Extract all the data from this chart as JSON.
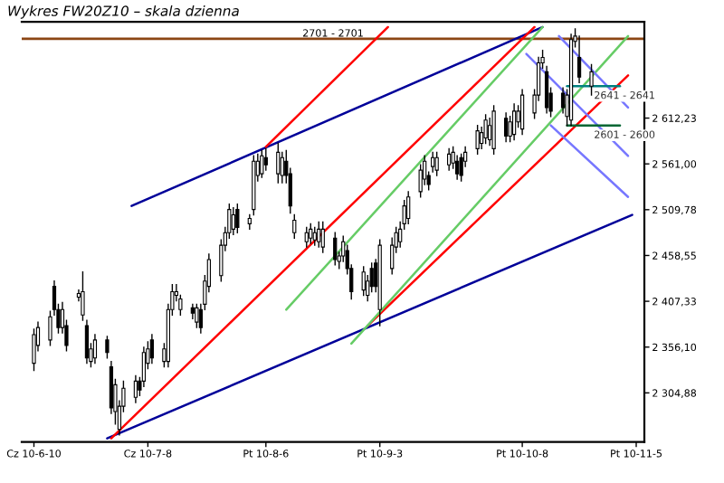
{
  "chart_data": {
    "type": "candlestick",
    "title": "Wykres FW20Z10 – skala dzienna",
    "x": [
      "2010-06-10",
      "2010-06-11",
      "2010-06-14",
      "2010-06-15",
      "2010-06-16",
      "2010-06-17",
      "2010-06-18",
      "2010-06-21",
      "2010-06-22",
      "2010-06-23",
      "2010-06-24",
      "2010-06-25",
      "2010-06-28",
      "2010-06-29",
      "2010-06-30",
      "2010-07-01",
      "2010-07-02",
      "2010-07-05",
      "2010-07-06",
      "2010-07-07",
      "2010-07-08",
      "2010-07-09",
      "2010-07-12",
      "2010-07-13",
      "2010-07-14",
      "2010-07-15",
      "2010-07-16",
      "2010-07-19",
      "2010-07-20",
      "2010-07-21",
      "2010-07-22",
      "2010-07-23",
      "2010-07-26",
      "2010-07-27",
      "2010-07-28",
      "2010-07-29",
      "2010-07-30",
      "2010-08-02",
      "2010-08-03",
      "2010-08-04",
      "2010-08-05",
      "2010-08-06",
      "2010-08-09",
      "2010-08-10",
      "2010-08-11",
      "2010-08-12",
      "2010-08-13",
      "2010-08-16",
      "2010-08-17",
      "2010-08-18",
      "2010-08-19",
      "2010-08-20",
      "2010-08-23",
      "2010-08-24",
      "2010-08-25",
      "2010-08-26",
      "2010-08-27",
      "2010-08-30",
      "2010-08-31",
      "2010-09-01",
      "2010-09-02",
      "2010-09-03",
      "2010-09-06",
      "2010-09-07",
      "2010-09-08",
      "2010-09-09",
      "2010-09-10",
      "2010-09-13",
      "2010-09-14",
      "2010-09-15",
      "2010-09-16",
      "2010-09-17",
      "2010-09-20",
      "2010-09-21",
      "2010-09-22",
      "2010-09-23",
      "2010-09-24",
      "2010-09-27",
      "2010-09-28",
      "2010-09-29",
      "2010-09-30",
      "2010-10-01",
      "2010-10-04",
      "2010-10-05",
      "2010-10-06",
      "2010-10-07",
      "2010-10-08",
      "2010-10-11",
      "2010-10-12",
      "2010-10-13",
      "2010-10-14",
      "2010-10-15",
      "2010-10-18",
      "2010-10-19",
      "2010-10-20",
      "2010-10-21",
      "2010-10-22",
      "2010-10-25"
    ],
    "ohlc": [
      [
        2338,
        2376,
        2330,
        2370
      ],
      [
        2358,
        2384,
        2352,
        2378
      ],
      [
        2364,
        2396,
        2358,
        2390
      ],
      [
        2424,
        2430,
        2392,
        2398
      ],
      [
        2398,
        2404,
        2372,
        2378
      ],
      [
        2378,
        2406,
        2372,
        2398
      ],
      [
        2380,
        2386,
        2352,
        2358
      ],
      [
        2412,
        2420,
        2408,
        2416
      ],
      [
        2392,
        2440,
        2386,
        2418
      ],
      [
        2380,
        2386,
        2338,
        2344
      ],
      [
        2340,
        2360,
        2334,
        2354
      ],
      [
        2344,
        2370,
        2338,
        2364
      ],
      [
        2364,
        2368,
        2344,
        2350
      ],
      [
        2334,
        2340,
        2282,
        2288
      ],
      [
        2284,
        2320,
        2270,
        2314
      ],
      [
        2264,
        2296,
        2258,
        2290
      ],
      [
        2290,
        2318,
        2284,
        2310
      ],
      [
        2300,
        2324,
        2294,
        2318
      ],
      [
        2318,
        2322,
        2302,
        2308
      ],
      [
        2318,
        2356,
        2312,
        2350
      ],
      [
        2338,
        2362,
        2332,
        2354
      ],
      [
        2364,
        2370,
        2338,
        2344
      ],
      [
        2340,
        2360,
        2334,
        2354
      ],
      [
        2340,
        2404,
        2334,
        2398
      ],
      [
        2398,
        2426,
        2392,
        2418
      ],
      [
        2414,
        2426,
        2408,
        2418
      ],
      [
        2398,
        2414,
        2392,
        2410
      ],
      [
        2400,
        2404,
        2388,
        2394
      ],
      [
        2384,
        2404,
        2378,
        2400
      ],
      [
        2398,
        2404,
        2372,
        2378
      ],
      [
        2404,
        2436,
        2398,
        2430
      ],
      [
        2424,
        2460,
        2418,
        2454
      ],
      [
        2436,
        2476,
        2430,
        2470
      ],
      [
        2470,
        2490,
        2464,
        2484
      ],
      [
        2484,
        2516,
        2478,
        2510
      ],
      [
        2488,
        2512,
        2482,
        2504
      ],
      [
        2510,
        2516,
        2484,
        2490
      ],
      [
        2494,
        2504,
        2488,
        2500
      ],
      [
        2510,
        2570,
        2504,
        2564
      ],
      [
        2548,
        2572,
        2542,
        2564
      ],
      [
        2550,
        2576,
        2546,
        2570
      ],
      [
        2568,
        2578,
        2554,
        2560
      ],
      [
        2550,
        2584,
        2540,
        2574
      ],
      [
        2548,
        2574,
        2540,
        2568
      ],
      [
        2564,
        2576,
        2540,
        2548
      ],
      [
        2550,
        2556,
        2506,
        2514
      ],
      [
        2484,
        2504,
        2478,
        2498
      ],
      [
        2474,
        2490,
        2468,
        2484
      ],
      [
        2478,
        2494,
        2472,
        2488
      ],
      [
        2476,
        2490,
        2470,
        2484
      ],
      [
        2474,
        2496,
        2468,
        2488
      ],
      [
        2468,
        2496,
        2462,
        2488
      ],
      [
        2478,
        2484,
        2448,
        2454
      ],
      [
        2452,
        2462,
        2444,
        2458
      ],
      [
        2458,
        2480,
        2452,
        2474
      ],
      [
        2464,
        2470,
        2438,
        2444
      ],
      [
        2444,
        2448,
        2410,
        2418
      ],
      [
        2420,
        2446,
        2414,
        2440
      ],
      [
        2414,
        2436,
        2408,
        2430
      ],
      [
        2444,
        2450,
        2418,
        2424
      ],
      [
        2450,
        2454,
        2418,
        2424
      ],
      [
        2398,
        2476,
        2380,
        2470
      ],
      [
        2444,
        2478,
        2438,
        2470
      ],
      [
        2468,
        2490,
        2462,
        2484
      ],
      [
        2474,
        2496,
        2468,
        2488
      ],
      [
        2494,
        2520,
        2488,
        2514
      ],
      [
        2500,
        2530,
        2494,
        2524
      ],
      [
        2530,
        2560,
        2524,
        2554
      ],
      [
        2544,
        2570,
        2538,
        2564
      ],
      [
        2548,
        2552,
        2532,
        2538
      ],
      [
        2558,
        2574,
        2552,
        2568
      ],
      [
        2554,
        2574,
        2548,
        2568
      ],
      [
        2560,
        2578,
        2554,
        2572
      ],
      [
        2562,
        2580,
        2556,
        2574
      ],
      [
        2564,
        2570,
        2544,
        2550
      ],
      [
        2568,
        2572,
        2542,
        2548
      ],
      [
        2564,
        2580,
        2558,
        2574
      ],
      [
        2578,
        2604,
        2572,
        2598
      ],
      [
        2584,
        2602,
        2578,
        2596
      ],
      [
        2590,
        2616,
        2584,
        2610
      ],
      [
        2588,
        2612,
        2582,
        2604
      ],
      [
        2578,
        2626,
        2572,
        2620
      ],
      [
        2612,
        2618,
        2586,
        2592
      ],
      [
        2592,
        2614,
        2586,
        2608
      ],
      [
        2594,
        2628,
        2588,
        2620
      ],
      [
        2608,
        2626,
        2602,
        2620
      ],
      [
        2600,
        2644,
        2594,
        2638
      ],
      [
        2618,
        2644,
        2612,
        2638
      ],
      [
        2638,
        2680,
        2632,
        2674
      ],
      [
        2674,
        2688,
        2668,
        2680
      ],
      [
        2664,
        2670,
        2618,
        2624
      ],
      [
        2640,
        2646,
        2614,
        2620
      ],
      [
        2640,
        2646,
        2618,
        2624
      ],
      [
        2614,
        2644,
        2604,
        2638
      ],
      [
        2610,
        2706,
        2604,
        2700
      ],
      [
        2698,
        2712,
        2692,
        2704
      ],
      [
        2680,
        2704,
        2652,
        2658
      ],
      [
        2648,
        2672,
        2638,
        2664
      ]
    ],
    "series": [
      {
        "type": "line",
        "color": "#000099",
        "x": [
          "2010-07-04",
          "2010-10-13"
        ],
        "values": [
          2514,
          2714
        ]
      },
      {
        "type": "line",
        "color": "#000099",
        "x": [
          "2010-06-28",
          "2010-11-04"
        ],
        "values": [
          2254,
          2504
        ]
      },
      {
        "type": "line",
        "color": "#ff0000",
        "x": [
          "2010-08-06",
          "2010-09-05"
        ],
        "values": [
          2580,
          2714
        ]
      },
      {
        "type": "line",
        "color": "#ff0000",
        "x": [
          "2010-06-29",
          "2010-10-11"
        ],
        "values": [
          2254,
          2714
        ]
      },
      {
        "type": "line",
        "color": "#ff0000",
        "x": [
          "2010-08-31",
          "2010-11-03"
        ],
        "values": [
          2380,
          2660
        ]
      },
      {
        "type": "line",
        "color": "#66cc66",
        "x": [
          "2010-08-11",
          "2010-10-13"
        ],
        "values": [
          2398,
          2714
        ]
      },
      {
        "type": "line",
        "color": "#66cc66",
        "x": [
          "2010-08-27",
          "2010-11-03"
        ],
        "values": [
          2360,
          2704
        ]
      },
      {
        "type": "line",
        "color": "#7777ff",
        "x": [
          "2010-10-09",
          "2010-11-03"
        ],
        "values": [
          2684,
          2570
        ]
      },
      {
        "type": "line",
        "color": "#7777ff",
        "x": [
          "2010-10-17",
          "2010-11-03"
        ],
        "values": [
          2704,
          2624
        ]
      },
      {
        "type": "line",
        "color": "#7777ff",
        "x": [
          "2010-10-15",
          "2010-11-03"
        ],
        "values": [
          2604,
          2524
        ]
      },
      {
        "type": "line",
        "color": "#008080",
        "x": [
          "2010-10-19",
          "2010-11-01"
        ],
        "values": [
          2648,
          2648
        ]
      },
      {
        "type": "line",
        "color": "#006633",
        "x": [
          "2010-10-19",
          "2010-11-01"
        ],
        "values": [
          2604,
          2604
        ]
      }
    ],
    "ref_lines": [
      {
        "axis": "y",
        "value": 2701,
        "label": "2701 - 2701",
        "color": "#8b4513"
      }
    ],
    "annotations": [
      {
        "text": "2641 - 2641",
        "x": "2010-10-25",
        "y": 2648
      },
      {
        "text": "2601 - 2600",
        "x": "2010-10-25",
        "y": 2604
      }
    ],
    "xlim": [
      "2010-06-07",
      "2010-11-07"
    ],
    "xticks": [
      {
        "value": "2010-06-10",
        "label": "Cz 10-6-10"
      },
      {
        "value": "2010-07-08",
        "label": "Cz 10-7-8"
      },
      {
        "value": "2010-08-06",
        "label": "Pt 10-8-6"
      },
      {
        "value": "2010-09-03",
        "label": "Pt 10-9-3"
      },
      {
        "value": "2010-10-08",
        "label": "Pt 10-10-8"
      },
      {
        "value": "2010-11-05",
        "label": "Pt 10-11-5"
      }
    ],
    "ylim": [
      2250,
      2720
    ],
    "yticks": [
      {
        "value": 2304.88,
        "label": "2 304,88"
      },
      {
        "value": 2356.1,
        "label": "2 356,10"
      },
      {
        "value": 2407.33,
        "label": "2 407,33"
      },
      {
        "value": 2458.55,
        "label": "2 458,55"
      },
      {
        "value": 2509.78,
        "label": "2 509,78"
      },
      {
        "value": 2561.0,
        "label": "2 561,00"
      },
      {
        "value": 2612.23,
        "label": "2 612,23"
      }
    ],
    "grid": false,
    "legend": false
  }
}
